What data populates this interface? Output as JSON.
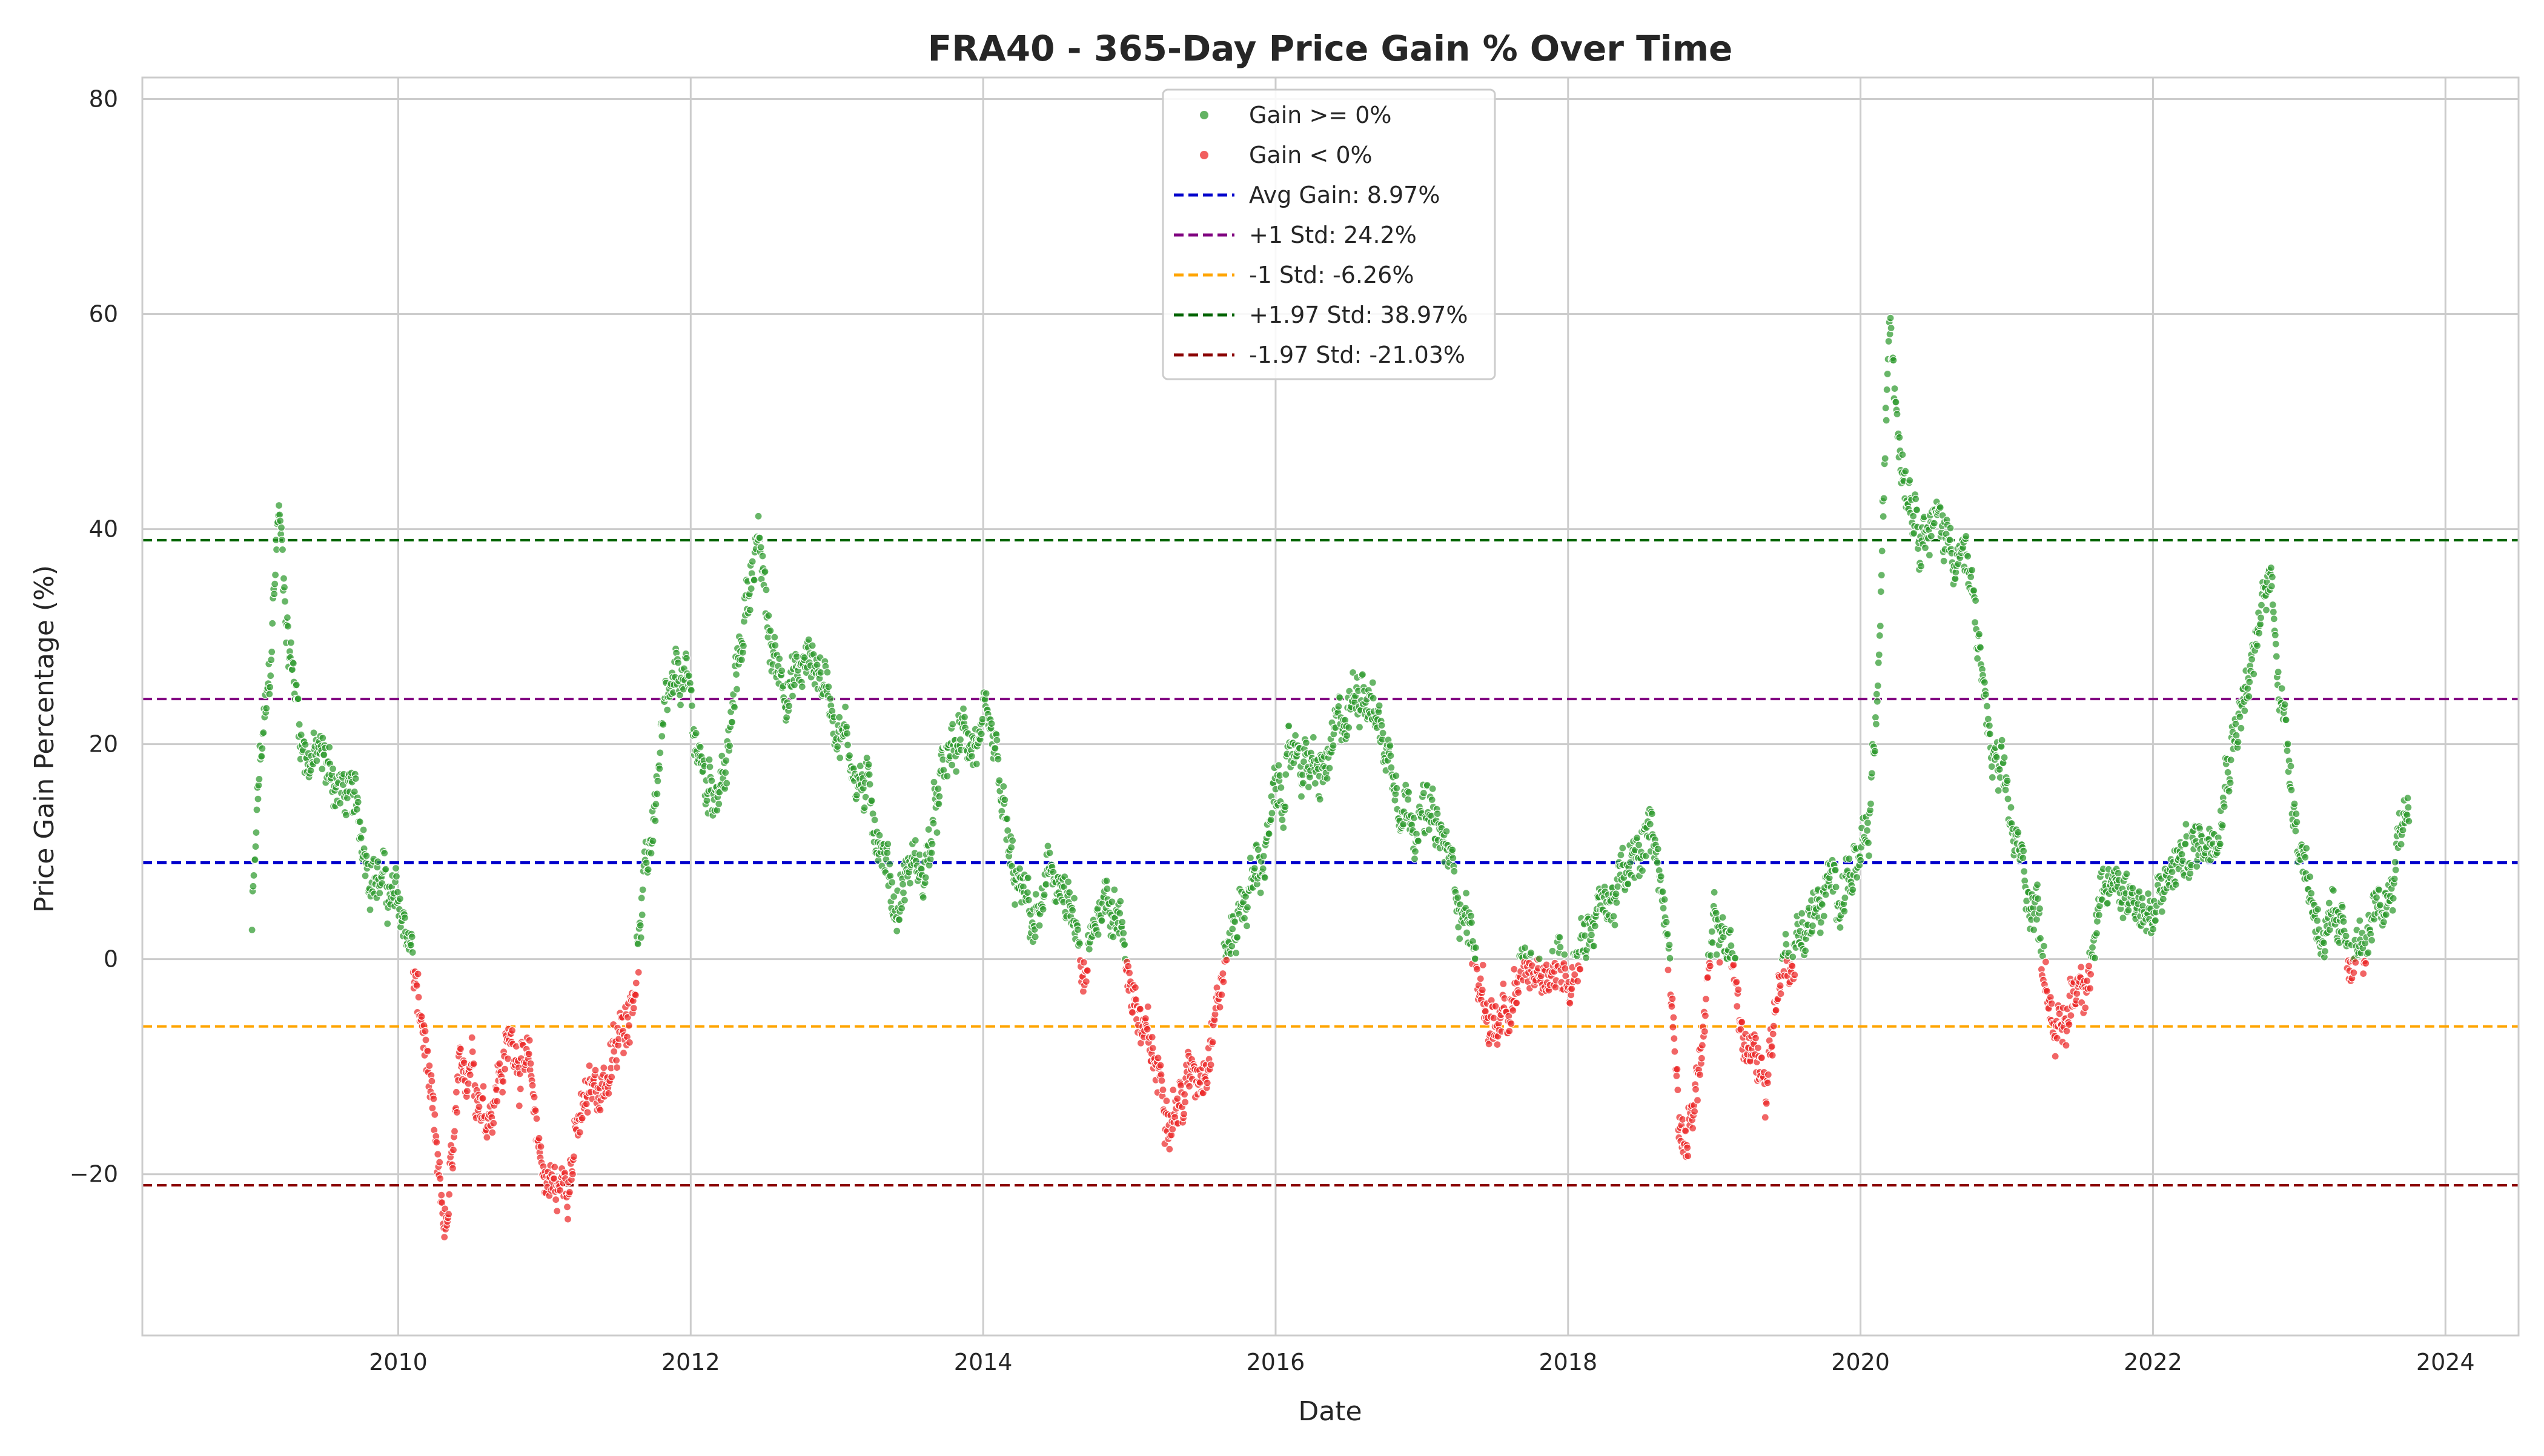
{
  "chart_data": {
    "type": "scatter",
    "title": "FRA40 - 365-Day Price Gain % Over Time",
    "xlabel": "Date",
    "ylabel": "Price Gain Percentage (%)",
    "xlim": [
      2008.25,
      2024.5
    ],
    "ylim": [
      -35,
      82
    ],
    "x_ticks": [
      2010,
      2012,
      2014,
      2016,
      2018,
      2020,
      2022,
      2024
    ],
    "y_ticks": [
      -20,
      0,
      20,
      40,
      60,
      80
    ],
    "y_tick_labels": [
      "−20",
      "0",
      "20",
      "40",
      "60",
      "80"
    ],
    "grid": true,
    "legend_position": "top-center",
    "colors": {
      "positive": "#2e9a2e",
      "negative": "#ec2a2a",
      "avg": "#0000cc",
      "plus1": "#800080",
      "minus1": "#ffa500",
      "plus197": "#006400",
      "minus197": "#8b0000"
    },
    "series": [
      {
        "name": "Gain >= 0%",
        "kind": "scatter",
        "color": "#2e9a2e"
      },
      {
        "name": "Gain < 0%",
        "kind": "scatter",
        "color": "#ec2a2a"
      }
    ],
    "reference_lines": [
      {
        "name": "Avg Gain: 8.97%",
        "y": 8.97,
        "color": "#0000cc"
      },
      {
        "name": "+1 Std: 24.2%",
        "y": 24.2,
        "color": "#800080"
      },
      {
        "name": "-1 Std: -6.26%",
        "y": -6.26,
        "color": "#ffa500"
      },
      {
        "name": "+1.97 Std: 38.97%",
        "y": 38.97,
        "color": "#006400"
      },
      {
        "name": "-1.97 Std: -21.03%",
        "y": -21.03,
        "color": "#8b0000"
      }
    ],
    "trajectory": [
      [
        2009.0,
        3
      ],
      [
        2009.05,
        17
      ],
      [
        2009.12,
        25
      ],
      [
        2009.18,
        42
      ],
      [
        2009.25,
        30
      ],
      [
        2009.35,
        20
      ],
      [
        2009.5,
        18
      ],
      [
        2009.65,
        15
      ],
      [
        2009.8,
        10
      ],
      [
        2009.9,
        7
      ],
      [
        2010.0,
        4
      ],
      [
        2010.08,
        2
      ],
      [
        2010.12,
        -3
      ],
      [
        2010.2,
        -10
      ],
      [
        2010.27,
        -22
      ],
      [
        2010.33,
        -26
      ],
      [
        2010.4,
        -15
      ],
      [
        2010.5,
        -8
      ],
      [
        2010.6,
        -14
      ],
      [
        2010.7,
        -10
      ],
      [
        2010.8,
        -7
      ],
      [
        2010.9,
        -12
      ],
      [
        2011.0,
        -20
      ],
      [
        2011.1,
        -22
      ],
      [
        2011.2,
        -17
      ],
      [
        2011.35,
        -12
      ],
      [
        2011.5,
        -9
      ],
      [
        2011.6,
        -2
      ],
      [
        2011.7,
        8
      ],
      [
        2011.8,
        20
      ],
      [
        2011.95,
        26
      ],
      [
        2012.1,
        16
      ],
      [
        2012.25,
        18
      ],
      [
        2012.35,
        30
      ],
      [
        2012.45,
        40
      ],
      [
        2012.55,
        28
      ],
      [
        2012.7,
        26
      ],
      [
        2012.85,
        28
      ],
      [
        2013.0,
        23
      ],
      [
        2013.15,
        17
      ],
      [
        2013.3,
        12
      ],
      [
        2013.4,
        5
      ],
      [
        2013.5,
        9
      ],
      [
        2013.6,
        8
      ],
      [
        2013.75,
        18
      ],
      [
        2013.9,
        21
      ],
      [
        2014.0,
        20
      ],
      [
        2014.1,
        16
      ],
      [
        2014.2,
        7
      ],
      [
        2014.35,
        3
      ],
      [
        2014.5,
        8
      ],
      [
        2014.6,
        3
      ],
      [
        2014.7,
        -3
      ],
      [
        2014.8,
        6
      ],
      [
        2014.9,
        6
      ],
      [
        2015.0,
        -1
      ],
      [
        2015.1,
        -8
      ],
      [
        2015.2,
        -11
      ],
      [
        2015.35,
        -13
      ],
      [
        2015.5,
        -9
      ],
      [
        2015.6,
        -3
      ],
      [
        2015.75,
        5
      ],
      [
        2015.9,
        9
      ],
      [
        2016.0,
        14
      ],
      [
        2016.15,
        20
      ],
      [
        2016.3,
        16
      ],
      [
        2016.45,
        21
      ],
      [
        2016.6,
        27
      ],
      [
        2016.75,
        20
      ],
      [
        2016.9,
        15
      ],
      [
        2017.0,
        14
      ],
      [
        2017.15,
        10
      ],
      [
        2017.3,
        5
      ],
      [
        2017.4,
        -3
      ],
      [
        2017.5,
        -6
      ],
      [
        2017.6,
        -7
      ],
      [
        2017.7,
        -1
      ],
      [
        2017.85,
        0
      ],
      [
        2018.0,
        -1
      ],
      [
        2018.1,
        3
      ],
      [
        2018.25,
        5
      ],
      [
        2018.45,
        8
      ],
      [
        2018.6,
        12
      ],
      [
        2018.72,
        -3
      ],
      [
        2018.78,
        -18
      ],
      [
        2018.9,
        -10
      ],
      [
        2019.0,
        2
      ],
      [
        2019.1,
        2
      ],
      [
        2019.2,
        -8
      ],
      [
        2019.35,
        -11
      ],
      [
        2019.45,
        -1
      ],
      [
        2019.6,
        3
      ],
      [
        2019.75,
        5
      ],
      [
        2019.9,
        8
      ],
      [
        2020.05,
        9
      ],
      [
        2020.12,
        25
      ],
      [
        2020.2,
        60
      ],
      [
        2020.28,
        48
      ],
      [
        2020.4,
        42
      ],
      [
        2020.55,
        40
      ],
      [
        2020.7,
        38
      ],
      [
        2020.8,
        30
      ],
      [
        2020.9,
        18
      ],
      [
        2021.0,
        14
      ],
      [
        2021.1,
        8
      ],
      [
        2021.2,
        5
      ],
      [
        2021.3,
        -3
      ],
      [
        2021.38,
        -8
      ],
      [
        2021.45,
        -3
      ],
      [
        2021.6,
        2
      ],
      [
        2021.75,
        8
      ],
      [
        2021.9,
        6
      ],
      [
        2022.0,
        3
      ],
      [
        2022.12,
        8
      ],
      [
        2022.25,
        10
      ],
      [
        2022.4,
        12
      ],
      [
        2022.55,
        22
      ],
      [
        2022.7,
        28
      ],
      [
        2022.8,
        36
      ],
      [
        2022.9,
        22
      ],
      [
        2023.0,
        12
      ],
      [
        2023.1,
        5
      ],
      [
        2023.25,
        1
      ],
      [
        2023.4,
        1
      ],
      [
        2023.5,
        1
      ],
      [
        2023.6,
        5
      ],
      [
        2023.7,
        13
      ],
      [
        2023.75,
        15
      ]
    ]
  },
  "legend": {
    "items": [
      {
        "label": "Gain >= 0%",
        "kind": "dot",
        "color": "#2e9a2e"
      },
      {
        "label": "Gain < 0%",
        "kind": "dot",
        "color": "#ec2a2a"
      },
      {
        "label": "Avg Gain: 8.97%",
        "kind": "dash",
        "color": "#0000cc"
      },
      {
        "label": "+1 Std: 24.2%",
        "kind": "dash",
        "color": "#800080"
      },
      {
        "label": "-1 Std: -6.26%",
        "kind": "dash",
        "color": "#ffa500"
      },
      {
        "label": "+1.97 Std: 38.97%",
        "kind": "dash",
        "color": "#006400"
      },
      {
        "label": "-1.97 Std: -21.03%",
        "kind": "dash",
        "color": "#8b0000"
      }
    ]
  }
}
